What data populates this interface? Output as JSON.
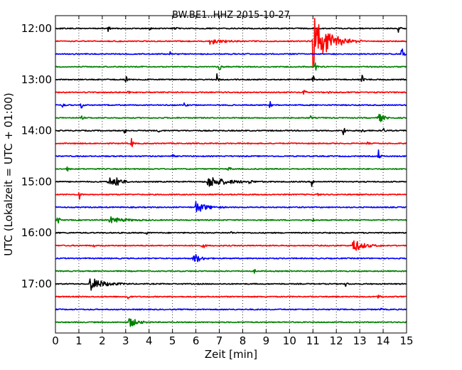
{
  "chart_data": {
    "type": "line",
    "title": "BW.BE1..HHZ 2015-10-27",
    "xlabel": "Zeit  [min]",
    "ylabel": "UTC (Lokalzeit = UTC + 01:00)",
    "xlim": [
      0,
      15
    ],
    "x_ticks": [
      0,
      1,
      2,
      3,
      4,
      5,
      6,
      7,
      8,
      9,
      10,
      11,
      12,
      13,
      14,
      15
    ],
    "y_tick_labels": [
      "12:00",
      "13:00",
      "14:00",
      "15:00",
      "16:00",
      "17:00"
    ],
    "y_tick_trace_index": [
      0,
      4,
      8,
      12,
      16,
      20
    ],
    "trace_interval_minutes": 15,
    "trace_count": 24,
    "first_trace_start": "12:00",
    "grid": "dotted vertical lines at each minute",
    "color_cycle": [
      "#000000",
      "#ff0000",
      "#0000ff",
      "#008000"
    ],
    "series": [
      {
        "start": "12:00",
        "events": [
          {
            "t": 2.25,
            "a": 0.6
          },
          {
            "t": 4.0,
            "a": 0.3
          },
          {
            "t": 5.1,
            "a": 0.3
          },
          {
            "t": 14.65,
            "a": 0.6
          }
        ]
      },
      {
        "start": "12:15",
        "events": [
          {
            "t": 6.6,
            "a": 0.5,
            "d": 1.0
          },
          {
            "t": 11.0,
            "a": 4.2,
            "d": 1.3
          }
        ]
      },
      {
        "start": "12:30",
        "events": [
          {
            "t": 4.9,
            "a": 0.3
          },
          {
            "t": 14.8,
            "a": 2.4
          }
        ]
      },
      {
        "start": "12:45",
        "events": [
          {
            "t": 7.0,
            "a": 0.9
          },
          {
            "t": 11.1,
            "a": 0.8
          }
        ]
      },
      {
        "start": "13:00",
        "events": [
          {
            "t": 3.0,
            "a": 0.8
          },
          {
            "t": 6.9,
            "a": 0.9
          },
          {
            "t": 11.0,
            "a": 0.8
          },
          {
            "t": 13.1,
            "a": 0.7
          }
        ]
      },
      {
        "start": "13:15",
        "events": [
          {
            "t": 3.1,
            "a": 0.3
          },
          {
            "t": 10.6,
            "a": 0.8
          },
          {
            "t": 11.7,
            "a": 0.4
          }
        ]
      },
      {
        "start": "13:30",
        "events": [
          {
            "t": 0.3,
            "a": 0.4
          },
          {
            "t": 1.1,
            "a": 0.7
          },
          {
            "t": 5.5,
            "a": 0.4
          },
          {
            "t": 9.15,
            "a": 0.8
          }
        ]
      },
      {
        "start": "13:45",
        "events": [
          {
            "t": 1.1,
            "a": 0.4
          },
          {
            "t": 10.9,
            "a": 0.3
          },
          {
            "t": 13.8,
            "a": 0.9,
            "d": 0.4
          }
        ]
      },
      {
        "start": "14:00",
        "events": [
          {
            "t": 2.95,
            "a": 0.6
          },
          {
            "t": 4.4,
            "a": 0.3
          },
          {
            "t": 12.3,
            "a": 1.0
          },
          {
            "t": 13.1,
            "a": 0.6
          },
          {
            "t": 14.0,
            "a": 0.5
          }
        ]
      },
      {
        "start": "14:15",
        "events": [
          {
            "t": 3.25,
            "a": 0.8
          },
          {
            "t": 13.3,
            "a": 0.3
          }
        ]
      },
      {
        "start": "14:30",
        "events": [
          {
            "t": 5.0,
            "a": 0.3
          },
          {
            "t": 13.8,
            "a": 1.0
          }
        ]
      },
      {
        "start": "14:45",
        "events": [
          {
            "t": 0.5,
            "a": 0.4
          },
          {
            "t": 7.4,
            "a": 0.6
          }
        ]
      },
      {
        "start": "15:00",
        "events": [
          {
            "t": 2.25,
            "a": 0.9,
            "d": 0.5
          },
          {
            "t": 2.6,
            "a": 0.8,
            "d": 0.4
          },
          {
            "t": 6.5,
            "a": 0.9,
            "d": 1.5
          },
          {
            "t": 8.3,
            "a": 0.5
          },
          {
            "t": 10.95,
            "a": 0.7
          }
        ]
      },
      {
        "start": "15:15",
        "events": [
          {
            "t": 1.0,
            "a": 1.1
          },
          {
            "t": 11.2,
            "a": 0.2
          }
        ]
      },
      {
        "start": "15:30",
        "events": [
          {
            "t": 6.0,
            "a": 1.0,
            "d": 0.8
          }
        ]
      },
      {
        "start": "15:45",
        "events": [
          {
            "t": 0.1,
            "a": 0.9
          },
          {
            "t": 2.3,
            "a": 0.5,
            "d": 1.2
          },
          {
            "t": 11.0,
            "a": 0.3
          }
        ]
      },
      {
        "start": "16:00",
        "events": [
          {
            "t": 3.9,
            "a": 0.3
          },
          {
            "t": 7.5,
            "a": 0.2
          }
        ]
      },
      {
        "start": "16:15",
        "events": [
          {
            "t": 1.6,
            "a": 0.3
          },
          {
            "t": 6.3,
            "a": 0.7
          },
          {
            "t": 12.7,
            "a": 1.1,
            "d": 0.8
          }
        ]
      },
      {
        "start": "16:30",
        "events": [
          {
            "t": 5.9,
            "a": 1.0,
            "d": 0.5
          }
        ]
      },
      {
        "start": "16:45",
        "events": [
          {
            "t": 8.5,
            "a": 0.3
          }
        ]
      },
      {
        "start": "17:00",
        "events": [
          {
            "t": 1.45,
            "a": 1.1,
            "d": 1.1
          },
          {
            "t": 12.4,
            "a": 0.4
          }
        ]
      },
      {
        "start": "17:15",
        "events": [
          {
            "t": 3.1,
            "a": 0.4
          },
          {
            "t": 13.8,
            "a": 0.5
          }
        ]
      },
      {
        "start": "17:30",
        "events": [
          {
            "t": 13.9,
            "a": 0.2
          }
        ]
      },
      {
        "start": "17:45",
        "events": [
          {
            "t": 3.15,
            "a": 0.9,
            "d": 0.6
          }
        ]
      }
    ]
  }
}
